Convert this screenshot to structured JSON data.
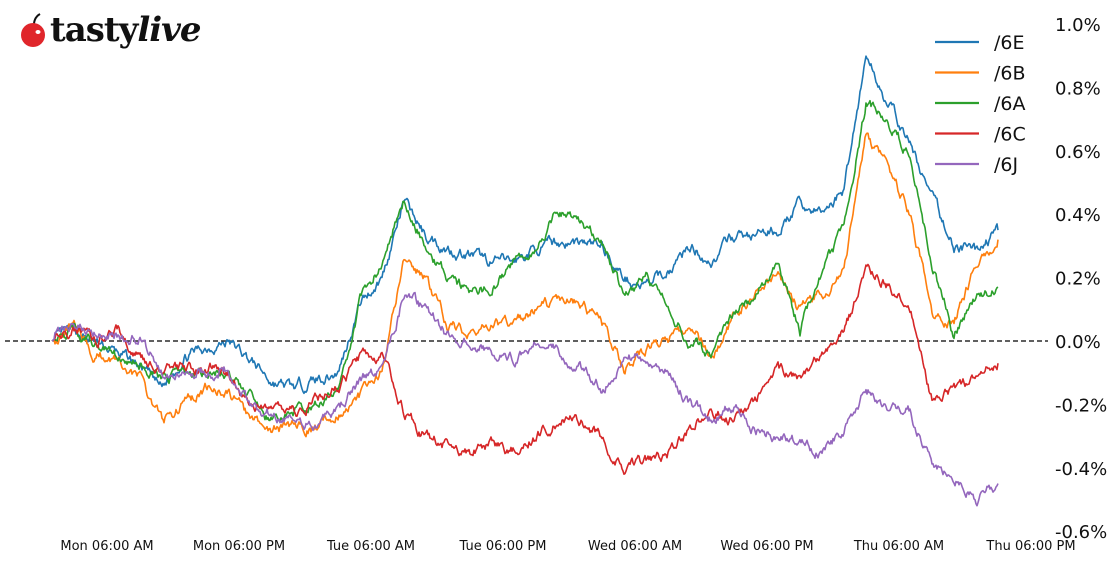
{
  "logo": {
    "brand": "tastylive"
  },
  "chart_data": {
    "type": "line",
    "title": "",
    "xlabel": "",
    "ylabel": "",
    "ylim": [
      -0.6,
      1.0
    ],
    "y_unit": "%",
    "y_ticks": [
      1.0,
      0.8,
      0.6,
      0.4,
      0.2,
      0.0,
      -0.2,
      -0.4,
      -0.6
    ],
    "y_tick_labels": [
      "1.0%",
      "0.8%",
      "0.6%",
      "0.4%",
      "0.2%",
      "0.0%",
      "-0.2%",
      "-0.4%",
      "-0.6%"
    ],
    "y_axis_side": "right",
    "x_ticks": [
      "Mon 06:00",
      "Mon 18:00",
      "Tue 06:00",
      "Tue 18:00",
      "Wed 06:00",
      "Wed 18:00",
      "Thu 06:00",
      "Thu 18:00"
    ],
    "x_tick_labels": [
      "Mon 06:00 AM",
      "Mon 06:00 PM",
      "Tue 06:00 AM",
      "Tue 06:00 PM",
      "Wed 06:00 AM",
      "Wed 06:00 PM",
      "Thu 06:00 AM",
      "Thu 06:00 PM"
    ],
    "reference_line": {
      "y": 0.0,
      "style": "dashed",
      "color": "#000000"
    },
    "grid": false,
    "legend_position": "top-right",
    "x": [
      "Mon 01:00",
      "Mon 03:00",
      "Mon 05:00",
      "Mon 07:00",
      "Mon 09:00",
      "Mon 11:00",
      "Mon 13:00",
      "Mon 15:00",
      "Mon 17:00",
      "Mon 19:00",
      "Mon 21:00",
      "Mon 23:00",
      "Tue 01:00",
      "Tue 03:00",
      "Tue 05:00",
      "Tue 07:00",
      "Tue 09:00",
      "Tue 11:00",
      "Tue 13:00",
      "Tue 15:00",
      "Tue 17:00",
      "Tue 19:00",
      "Tue 21:00",
      "Tue 23:00",
      "Wed 01:00",
      "Wed 03:00",
      "Wed 05:00",
      "Wed 07:00",
      "Wed 09:00",
      "Wed 11:00",
      "Wed 13:00",
      "Wed 15:00",
      "Wed 17:00",
      "Wed 19:00",
      "Wed 21:00",
      "Wed 23:00",
      "Thu 01:00",
      "Thu 03:00",
      "Thu 05:00",
      "Thu 07:00",
      "Thu 09:00",
      "Thu 11:00",
      "Thu 13:00",
      "Thu 15:00"
    ],
    "series": [
      {
        "name": "/6E",
        "color": "#1f77b4",
        "values": [
          0,
          0.03,
          -0.01,
          -0.04,
          -0.08,
          -0.15,
          -0.05,
          -0.02,
          0.0,
          -0.06,
          -0.13,
          -0.15,
          -0.12,
          -0.1,
          0.12,
          0.2,
          0.44,
          0.33,
          0.29,
          0.27,
          0.25,
          0.25,
          0.29,
          0.31,
          0.31,
          0.3,
          0.2,
          0.17,
          0.22,
          0.3,
          0.25,
          0.33,
          0.33,
          0.35,
          0.43,
          0.4,
          0.48,
          0.9,
          0.75,
          0.62,
          0.45,
          0.3,
          0.28,
          0.35
        ]
      },
      {
        "name": "/6B",
        "color": "#ff7f0e",
        "values": [
          0,
          0.05,
          -0.05,
          -0.05,
          -0.12,
          -0.25,
          -0.2,
          -0.15,
          -0.16,
          -0.25,
          -0.28,
          -0.27,
          -0.27,
          -0.22,
          -0.18,
          -0.1,
          0.25,
          0.2,
          0.05,
          0.03,
          0.05,
          0.05,
          0.1,
          0.12,
          0.12,
          0.05,
          -0.08,
          -0.02,
          0.0,
          0.05,
          -0.05,
          0.08,
          0.15,
          0.2,
          0.1,
          0.15,
          0.22,
          0.65,
          0.55,
          0.4,
          0.1,
          0.05,
          0.25,
          0.32
        ]
      },
      {
        "name": "/6A",
        "color": "#2ca02c",
        "values": [
          0,
          0.05,
          -0.02,
          -0.04,
          -0.08,
          -0.12,
          -0.1,
          -0.09,
          -0.1,
          -0.18,
          -0.25,
          -0.22,
          -0.2,
          -0.15,
          0.12,
          0.25,
          0.45,
          0.3,
          0.2,
          0.15,
          0.17,
          0.25,
          0.3,
          0.42,
          0.38,
          0.3,
          0.15,
          0.2,
          0.12,
          0.0,
          -0.05,
          0.1,
          0.15,
          0.25,
          0.03,
          0.22,
          0.35,
          0.75,
          0.68,
          0.6,
          0.25,
          0.02,
          0.15,
          0.17
        ]
      },
      {
        "name": "/6C",
        "color": "#d62728",
        "values": [
          0,
          0.04,
          0.01,
          0.03,
          -0.05,
          -0.1,
          -0.09,
          -0.08,
          -0.09,
          -0.2,
          -0.22,
          -0.23,
          -0.18,
          -0.15,
          -0.05,
          -0.05,
          -0.22,
          -0.3,
          -0.33,
          -0.35,
          -0.32,
          -0.35,
          -0.3,
          -0.25,
          -0.25,
          -0.3,
          -0.4,
          -0.38,
          -0.35,
          -0.28,
          -0.22,
          -0.25,
          -0.18,
          -0.1,
          -0.1,
          -0.05,
          0.02,
          0.22,
          0.18,
          0.12,
          -0.18,
          -0.15,
          -0.12,
          -0.07
        ]
      },
      {
        "name": "/6J",
        "color": "#9467bd",
        "values": [
          0,
          0.06,
          0.04,
          0.02,
          0.01,
          -0.1,
          -0.09,
          -0.09,
          -0.09,
          -0.2,
          -0.23,
          -0.25,
          -0.28,
          -0.22,
          -0.12,
          -0.1,
          0.15,
          0.1,
          0.02,
          0.0,
          -0.03,
          -0.05,
          0.0,
          -0.03,
          -0.08,
          -0.15,
          -0.05,
          -0.05,
          -0.1,
          -0.2,
          -0.25,
          -0.2,
          -0.28,
          -0.3,
          -0.32,
          -0.35,
          -0.28,
          -0.15,
          -0.2,
          -0.22,
          -0.4,
          -0.42,
          -0.5,
          -0.45
        ]
      }
    ]
  }
}
